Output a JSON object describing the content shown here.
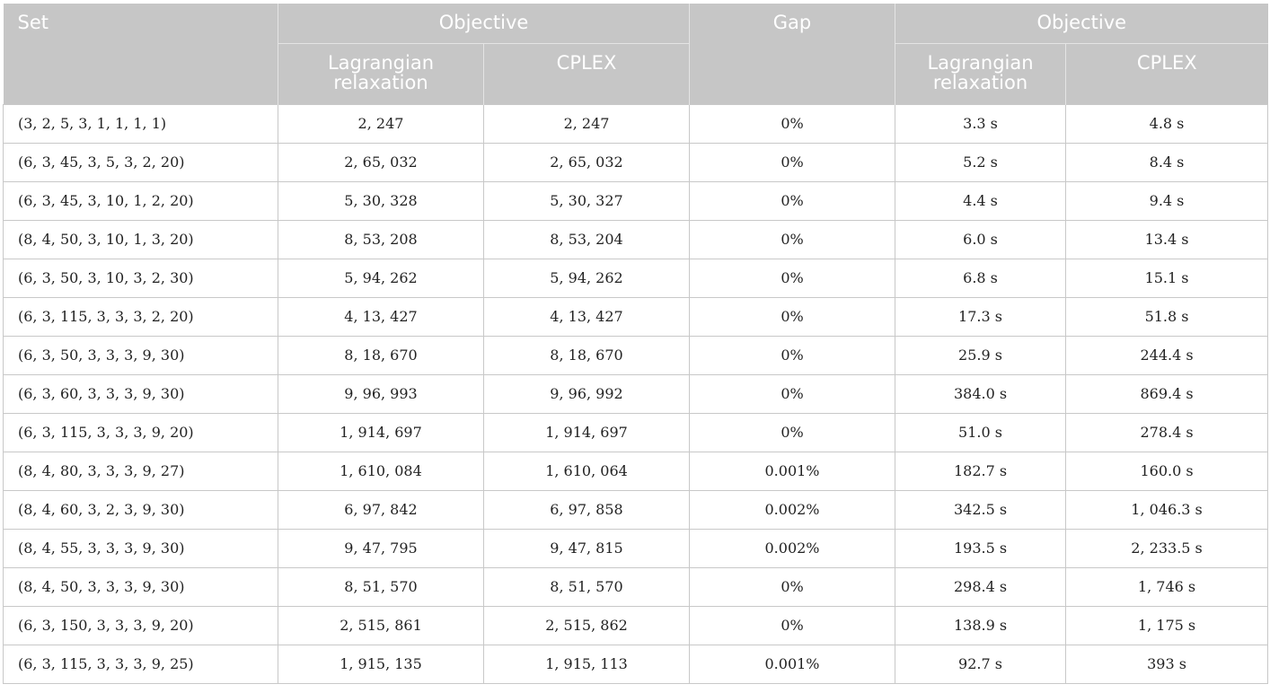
{
  "header": {
    "set": "Set",
    "objective": "Objective",
    "gap": "Gap",
    "objective2": "Objective",
    "lagrangian": "Lagrangian relaxation",
    "cplex": "CPLEX",
    "lagrangian2": "Lagrangian relaxation",
    "cplex2": "CPLEX"
  },
  "rows": [
    {
      "set": "(3, 2, 5, 3, 1, 1, 1, 1)",
      "lr": "2, 247",
      "cplex": "2, 247",
      "gap": "0%",
      "lr_time": "3.3 s",
      "cplex_time": "4.8 s"
    },
    {
      "set": "(6, 3, 45, 3, 5, 3, 2, 20)",
      "lr": "2, 65, 032",
      "cplex": "2, 65, 032",
      "gap": "0%",
      "lr_time": "5.2 s",
      "cplex_time": "8.4 s"
    },
    {
      "set": "(6, 3, 45, 3, 10, 1, 2, 20)",
      "lr": "5, 30, 328",
      "cplex": "5, 30, 327",
      "gap": "0%",
      "lr_time": "4.4 s",
      "cplex_time": "9.4 s"
    },
    {
      "set": "(8, 4, 50, 3, 10, 1, 3, 20)",
      "lr": "8, 53, 208",
      "cplex": "8, 53, 204",
      "gap": "0%",
      "lr_time": "6.0 s",
      "cplex_time": "13.4 s"
    },
    {
      "set": "(6, 3, 50, 3, 10, 3, 2, 30)",
      "lr": "5, 94, 262",
      "cplex": "5, 94, 262",
      "gap": "0%",
      "lr_time": "6.8 s",
      "cplex_time": "15.1 s"
    },
    {
      "set": "(6, 3, 115, 3, 3, 3, 2, 20)",
      "lr": "4, 13, 427",
      "cplex": "4, 13, 427",
      "gap": "0%",
      "lr_time": "17.3 s",
      "cplex_time": "51.8 s"
    },
    {
      "set": "(6, 3, 50, 3, 3, 3, 9, 30)",
      "lr": "8, 18, 670",
      "cplex": "8, 18, 670",
      "gap": "0%",
      "lr_time": "25.9 s",
      "cplex_time": "244.4 s"
    },
    {
      "set": "(6, 3, 60, 3, 3, 3, 9, 30)",
      "lr": "9, 96, 993",
      "cplex": "9, 96, 992",
      "gap": "0%",
      "lr_time": "384.0 s",
      "cplex_time": "869.4 s"
    },
    {
      "set": "(6, 3, 115, 3, 3, 3, 9, 20)",
      "lr": "1, 914, 697",
      "cplex": "1, 914, 697",
      "gap": "0%",
      "lr_time": "51.0 s",
      "cplex_time": "278.4 s"
    },
    {
      "set": "(8, 4, 80, 3, 3, 3, 9, 27)",
      "lr": "1, 610, 084",
      "cplex": "1, 610, 064",
      "gap": "0.001%",
      "lr_time": "182.7 s",
      "cplex_time": "160.0 s"
    },
    {
      "set": "(8, 4, 60, 3, 2, 3, 9, 30)",
      "lr": "6, 97, 842",
      "cplex": "6, 97, 858",
      "gap": "0.002%",
      "lr_time": "342.5 s",
      "cplex_time": "1, 046.3 s"
    },
    {
      "set": "(8, 4, 55, 3, 3, 3, 9, 30)",
      "lr": "9, 47, 795",
      "cplex": "9, 47, 815",
      "gap": "0.002%",
      "lr_time": "193.5 s",
      "cplex_time": "2, 233.5 s"
    },
    {
      "set": "(8, 4, 50, 3, 3, 3, 9, 30)",
      "lr": "8, 51, 570",
      "cplex": "8, 51, 570",
      "gap": "0%",
      "lr_time": "298.4 s",
      "cplex_time": "1, 746 s"
    },
    {
      "set": "(6, 3, 150, 3, 3, 3, 9, 20)",
      "lr": "2, 515, 861",
      "cplex": "2, 515, 862",
      "gap": "0%",
      "lr_time": "138.9 s",
      "cplex_time": "1, 175 s"
    },
    {
      "set": "(6, 3, 115, 3, 3, 3, 9, 25)",
      "lr": "1, 915, 135",
      "cplex": "1, 915, 113",
      "gap": "0.001%",
      "lr_time": "92.7 s",
      "cplex_time": "393 s"
    }
  ]
}
